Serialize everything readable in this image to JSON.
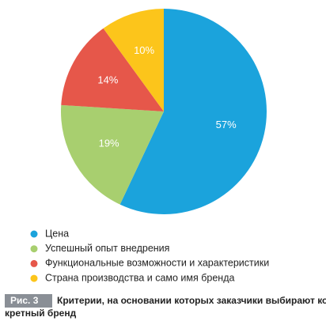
{
  "chart_data": {
    "type": "pie",
    "categories": [
      "Цена",
      "Успешный опыт внедрения",
      "Функциональные возможности и характеристики",
      "Страна производства и само имя бренда"
    ],
    "values": [
      57,
      19,
      14,
      10
    ],
    "value_labels": [
      "57%",
      "19%",
      "14%",
      "10%"
    ],
    "colors": [
      "#1ba3dc",
      "#a8cf6f",
      "#e6574a",
      "#fcc51b"
    ],
    "figure_label": "Рис. 3",
    "caption": [
      "Критерии, на основании которых заказчики выбирают кон-",
      "кретный бренд"
    ]
  }
}
